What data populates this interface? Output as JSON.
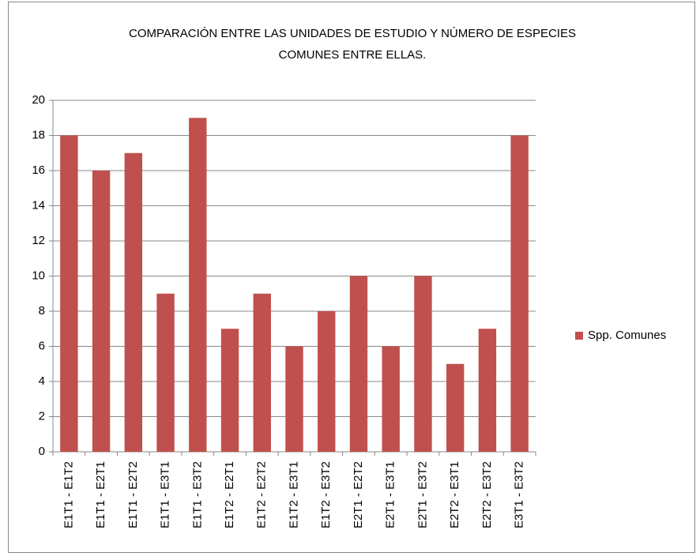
{
  "chart_data": {
    "type": "bar",
    "title": [
      "COMPARACIÓN ENTRE LAS UNIDADES DE ESTUDIO Y NÚMERO DE ESPECIES",
      "COMUNES ENTRE ELLAS."
    ],
    "categories": [
      "E1T1 - E1T2",
      "E1T1 - E2T1",
      "E1T1 - E2T2",
      "E1T1 - E3T1",
      "E1T1 - E3T2",
      "E1T2 - E2T1",
      "E1T2 - E2T2",
      "E1T2 - E3T1",
      "E1T2 - E3T2",
      "E2T1 - E2T2",
      "E2T1 - E3T1",
      "E2T1 - E3T2",
      "E2T2 - E3T1",
      "E2T2 - E3T2",
      "E3T1 - E3T2"
    ],
    "series": [
      {
        "name": "Spp. Comunes",
        "color": "#c0504d",
        "values": [
          18,
          16,
          17,
          9,
          19,
          7,
          9,
          6,
          8,
          10,
          6,
          10,
          5,
          7,
          18
        ]
      }
    ],
    "ylim": [
      0,
      20
    ],
    "yticks": [
      0,
      2,
      4,
      6,
      8,
      10,
      12,
      14,
      16,
      18,
      20
    ],
    "grid": true,
    "legend": "right"
  }
}
